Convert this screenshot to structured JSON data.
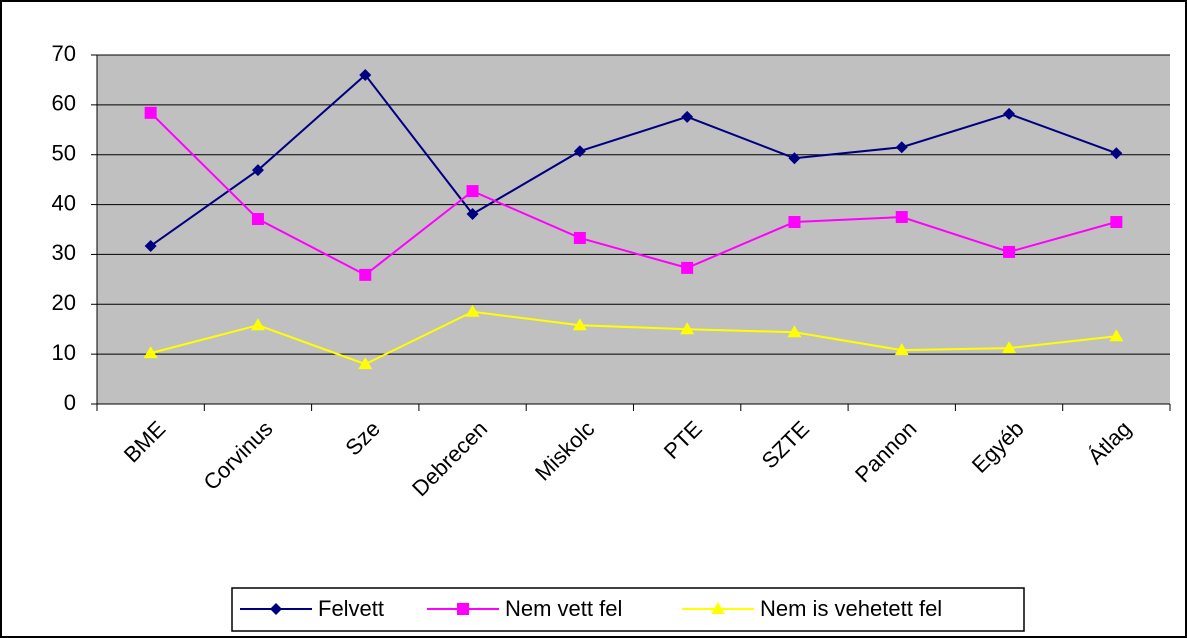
{
  "chart_data": {
    "type": "line",
    "categories": [
      "BME",
      "Corvinus",
      "Sze",
      "Debrecen",
      "Miskolc",
      "PTE",
      "SZTE",
      "Pannon",
      "Egyéb",
      "Átlag"
    ],
    "series": [
      {
        "name": "Felvett",
        "color": "#000080",
        "marker": "diamond",
        "values": [
          31.7,
          46.9,
          66,
          38.1,
          50.7,
          57.6,
          49.3,
          51.5,
          58.2,
          50.3
        ]
      },
      {
        "name": "Nem vett fel",
        "color": "#FF00FF",
        "marker": "square",
        "values": [
          58.4,
          37.1,
          25.9,
          42.7,
          33.3,
          27.3,
          36.5,
          37.5,
          30.5,
          36.5
        ]
      },
      {
        "name": "Nem is vehetett fel",
        "color": "#FFFF00",
        "marker": "triangle",
        "values": [
          10.2,
          15.8,
          8,
          18.5,
          15.8,
          15,
          14.4,
          10.8,
          11.2,
          13.6
        ]
      }
    ],
    "ylim": [
      0,
      70
    ],
    "yticks": [
      0,
      10,
      20,
      30,
      40,
      50,
      60,
      70
    ],
    "grid": true,
    "legend": "bottom"
  }
}
